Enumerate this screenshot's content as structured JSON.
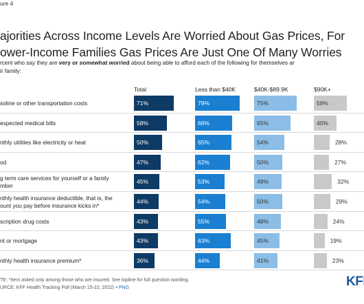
{
  "figure_label": "ure 4",
  "title_line1": "ajorities Across Income Levels Are Worried About Gas Prices, For",
  "title_line2": "ower-Income Families Gas Prices Are Just One Of Many Worries",
  "subtitle_pre": "rcent who say they are ",
  "subtitle_bold": "very or somewhat worried",
  "subtitle_post": " about being able to afford each of the following for themselves ar",
  "subtitle_line2": "ir family:",
  "note": "TE: *Item asked only among those who are insured. See topline for full question wording.",
  "source_text": "URCE: KFF Health Tracking Poll (March 15-22, 2022) • ",
  "source_link": "PNG",
  "logo": "KFF",
  "colors": {
    "total": "#0e3a66",
    "lt40": "#1a7fd1",
    "mid": "#8bbde6",
    "high": "#c9c9c9"
  },
  "chart_data": {
    "type": "bar",
    "title": "ajorities Across Income Levels Are Worried About Gas Prices, For ower-Income Families Gas Prices Are Just One Of Many Worries",
    "categories": [
      [
        "soline or other transportation costs"
      ],
      [
        "expected medical bills"
      ],
      [
        "nthly utilities like electricity or heat"
      ],
      [
        "od"
      ],
      [
        "g term care services for yourself or a family",
        "mber"
      ],
      [
        "nthly health insurance deductible, that is, the",
        "ount you pay before insurance kicks in*"
      ],
      [
        "scription drug costs"
      ],
      [
        "nt or mortgage"
      ],
      [
        "nthly health insurance premium*"
      ]
    ],
    "series": [
      {
        "name": "Total",
        "values": [
          71,
          58,
          50,
          47,
          45,
          44,
          43,
          43,
          36
        ]
      },
      {
        "name": "Less than $40K",
        "values": [
          79,
          66,
          65,
          62,
          53,
          54,
          55,
          63,
          44
        ]
      },
      {
        "name": "$40K-$89.9K",
        "values": [
          75,
          65,
          54,
          50,
          49,
          50,
          48,
          45,
          41
        ]
      },
      {
        "name": "$90K+",
        "values": [
          58,
          40,
          28,
          27,
          32,
          29,
          24,
          19,
          23
        ]
      }
    ],
    "value_suffix": "%",
    "xlim": [
      0,
      100
    ],
    "legend": "column headers"
  }
}
